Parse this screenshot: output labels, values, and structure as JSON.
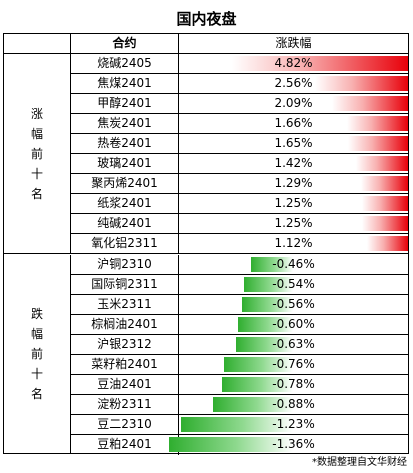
{
  "title": "国内夜盘",
  "header": {
    "contract": "合约",
    "change": "涨跌幅"
  },
  "colors": {
    "up": "#e8000a",
    "down": "#2fae2f"
  },
  "groups": [
    {
      "label": "涨幅前十名",
      "rows": [
        {
          "name": "烧碱2405",
          "change": "4.82%",
          "value": 4.82
        },
        {
          "name": "焦煤2401",
          "change": "2.56%",
          "value": 2.56
        },
        {
          "name": "甲醇2401",
          "change": "2.09%",
          "value": 2.09
        },
        {
          "name": "焦炭2401",
          "change": "1.66%",
          "value": 1.66
        },
        {
          "name": "热卷2401",
          "change": "1.65%",
          "value": 1.65
        },
        {
          "name": "玻璃2401",
          "change": "1.42%",
          "value": 1.42
        },
        {
          "name": "聚丙烯2401",
          "change": "1.29%",
          "value": 1.29
        },
        {
          "name": "纸浆2401",
          "change": "1.25%",
          "value": 1.25
        },
        {
          "name": "纯碱2401",
          "change": "1.25%",
          "value": 1.25
        },
        {
          "name": "氧化铝2311",
          "change": "1.12%",
          "value": 1.12
        }
      ]
    },
    {
      "label": "跌幅前十名",
      "rows": [
        {
          "name": "沪铜2310",
          "change": "-0.46%",
          "value": -0.46
        },
        {
          "name": "国际铜2311",
          "change": "-0.54%",
          "value": -0.54
        },
        {
          "name": "玉米2311",
          "change": "-0.56%",
          "value": -0.56
        },
        {
          "name": "棕榈油2401",
          "change": "-0.60%",
          "value": -0.6
        },
        {
          "name": "沪银2312",
          "change": "-0.63%",
          "value": -0.63
        },
        {
          "name": "菜籽粕2401",
          "change": "-0.76%",
          "value": -0.76
        },
        {
          "name": "豆油2401",
          "change": "-0.78%",
          "value": -0.78
        },
        {
          "name": "淀粉2311",
          "change": "-0.88%",
          "value": -0.88
        },
        {
          "name": "豆二2310",
          "change": "-1.23%",
          "value": -1.23
        },
        {
          "name": "豆粕2401",
          "change": "-1.36%",
          "value": -1.36
        }
      ]
    }
  ],
  "footnote": "*数据整理自文华财经"
}
